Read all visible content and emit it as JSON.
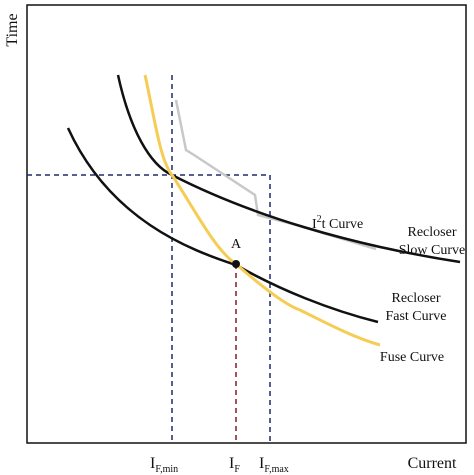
{
  "axes": {
    "y_label": "Time",
    "x_label": "Current"
  },
  "x_markers": [
    {
      "main": "I",
      "sub": "F,min"
    },
    {
      "main": "I",
      "sub": "F"
    },
    {
      "main": "I",
      "sub": "F,max"
    }
  ],
  "point": {
    "label": "A"
  },
  "curves": {
    "i2t": {
      "main": "I",
      "sup": "2",
      "rest": "t Curve"
    },
    "slow": {
      "line1": "Recloser",
      "line2": "Slow Curve"
    },
    "fast": {
      "line1": "Recloser",
      "line2": "Fast Curve"
    },
    "fuse": {
      "label": "Fuse Curve"
    }
  }
}
